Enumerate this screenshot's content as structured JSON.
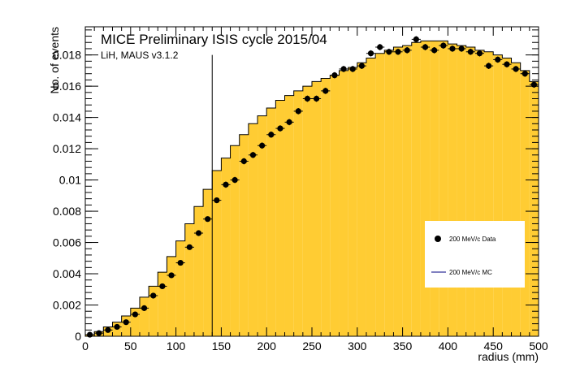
{
  "chart_data": {
    "type": "bar",
    "title": "MICE Preliminary ISIS cycle 2015/04",
    "subtitle": "LiH, MAUS v3.1.2",
    "xlabel": "radius (mm)",
    "ylabel": "No. of events",
    "xlim": [
      0,
      500
    ],
    "ylim": [
      0,
      0.0198
    ],
    "bin_width": 10,
    "cut_line_x": 140,
    "x_ticks": [
      0,
      50,
      100,
      150,
      200,
      250,
      300,
      350,
      400,
      450,
      500
    ],
    "x_tick_labels": [
      "0",
      "50",
      "100",
      "150",
      "200",
      "250",
      "300",
      "350",
      "400",
      "450",
      "500"
    ],
    "y_ticks": [
      0,
      0.002,
      0.004,
      0.006,
      0.008,
      0.01,
      0.012,
      0.014,
      0.016,
      0.018
    ],
    "y_tick_labels": [
      "0",
      "0.002",
      "0.004",
      "0.006",
      "0.008",
      "0.01",
      "0.012",
      "0.014",
      "0.016",
      "0.018"
    ],
    "legend": {
      "position": "right",
      "entries": [
        "200 MeV/c Data",
        "200 MeV/c MC"
      ]
    },
    "colors": {
      "mc_fill": "#ffcc33",
      "mc_line": "#000000",
      "data_marker": "#000000",
      "legend_line": "#000080"
    },
    "series": [
      {
        "name": "200 MeV/c MC",
        "kind": "histogram",
        "x": [
          5,
          15,
          25,
          35,
          45,
          55,
          65,
          75,
          85,
          95,
          105,
          115,
          125,
          135,
          145,
          155,
          165,
          175,
          185,
          195,
          205,
          215,
          225,
          235,
          245,
          255,
          265,
          275,
          285,
          295,
          305,
          315,
          325,
          335,
          345,
          355,
          365,
          375,
          385,
          395,
          405,
          415,
          425,
          435,
          445,
          455,
          465,
          475,
          485,
          495
        ],
        "values": [
          0.0001,
          0.0003,
          0.0006,
          0.0009,
          0.0013,
          0.0018,
          0.0025,
          0.0032,
          0.0041,
          0.0051,
          0.0061,
          0.0072,
          0.0083,
          0.0094,
          0.0106,
          0.0114,
          0.0122,
          0.0129,
          0.0136,
          0.0141,
          0.0146,
          0.0151,
          0.0154,
          0.0157,
          0.016,
          0.0163,
          0.0165,
          0.0167,
          0.017,
          0.0172,
          0.0175,
          0.0178,
          0.0181,
          0.0183,
          0.0185,
          0.0186,
          0.0188,
          0.0189,
          0.0189,
          0.0189,
          0.0187,
          0.0186,
          0.0185,
          0.0183,
          0.0182,
          0.018,
          0.0178,
          0.0175,
          0.017,
          0.0163
        ]
      },
      {
        "name": "200 MeV/c Data",
        "kind": "points",
        "x": [
          5,
          15,
          25,
          35,
          45,
          55,
          65,
          75,
          85,
          95,
          105,
          115,
          125,
          135,
          145,
          155,
          165,
          175,
          185,
          195,
          205,
          215,
          225,
          235,
          245,
          255,
          265,
          275,
          285,
          295,
          305,
          315,
          325,
          335,
          345,
          355,
          365,
          375,
          385,
          395,
          405,
          415,
          425,
          435,
          445,
          455,
          465,
          475,
          485,
          495
        ],
        "values": [
          0.0001,
          0.0002,
          0.0004,
          0.0006,
          0.0009,
          0.0014,
          0.0018,
          0.0026,
          0.0032,
          0.0039,
          0.0047,
          0.0057,
          0.0066,
          0.0075,
          0.0087,
          0.0097,
          0.01,
          0.0112,
          0.0116,
          0.0122,
          0.0129,
          0.0133,
          0.0137,
          0.0144,
          0.0152,
          0.0152,
          0.0157,
          0.0167,
          0.0171,
          0.0171,
          0.0173,
          0.0181,
          0.0185,
          0.0182,
          0.0182,
          0.0183,
          0.019,
          0.0185,
          0.0183,
          0.0186,
          0.0184,
          0.0184,
          0.0182,
          0.0181,
          0.0173,
          0.0177,
          0.0174,
          0.0171,
          0.0168,
          0.0161
        ],
        "errors": [
          0.0001,
          0.0001,
          0.0001,
          0.0001,
          0.0001,
          0.0001,
          0.0001,
          0.0001,
          0.0001,
          0.0001,
          0.0001,
          0.0001,
          0.0001,
          0.0001,
          0.0001,
          0.0002,
          0.0002,
          0.0002,
          0.0002,
          0.0002,
          0.0002,
          0.0002,
          0.0002,
          0.0002,
          0.0002,
          0.0002,
          0.0002,
          0.0002,
          0.0002,
          0.0002,
          0.0002,
          0.0002,
          0.0002,
          0.0002,
          0.0002,
          0.0002,
          0.0002,
          0.0002,
          0.0002,
          0.0002,
          0.0002,
          0.0002,
          0.0002,
          0.0002,
          0.0002,
          0.0002,
          0.0002,
          0.0002,
          0.0002,
          0.0002
        ]
      }
    ]
  }
}
